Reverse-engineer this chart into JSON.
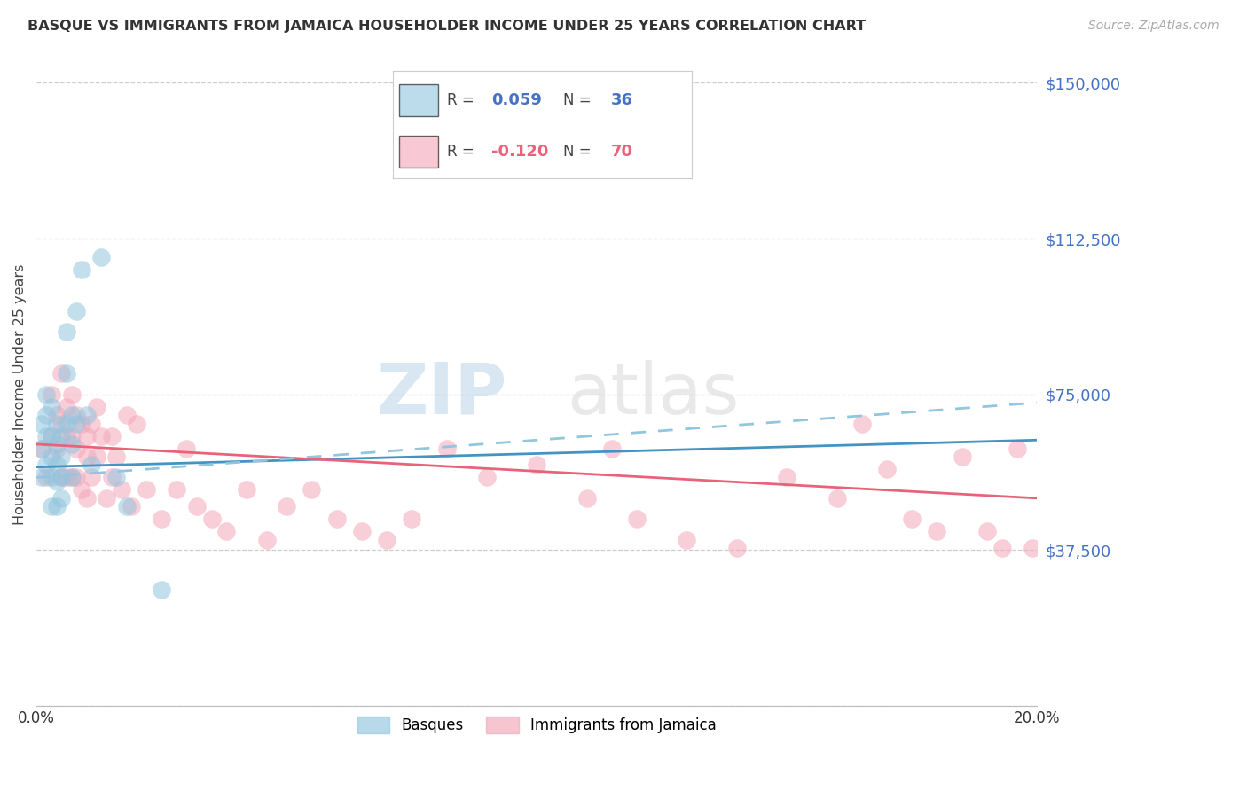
{
  "title": "BASQUE VS IMMIGRANTS FROM JAMAICA HOUSEHOLDER INCOME UNDER 25 YEARS CORRELATION CHART",
  "source": "Source: ZipAtlas.com",
  "ylabel": "Householder Income Under 25 years",
  "xlim": [
    0.0,
    0.2
  ],
  "ylim": [
    0,
    150000
  ],
  "yticks": [
    0,
    37500,
    75000,
    112500,
    150000
  ],
  "ytick_labels": [
    "",
    "$37,500",
    "$75,000",
    "$112,500",
    "$150,000"
  ],
  "color_blue": "#92c5de",
  "color_pink": "#f4a6b8",
  "trendline_blue_solid": "#4393c3",
  "trendline_pink_solid": "#e8637a",
  "trendline_blue_dashed": "#92c5de",
  "basque_x": [
    0.001,
    0.001,
    0.001,
    0.002,
    0.002,
    0.002,
    0.002,
    0.003,
    0.003,
    0.003,
    0.003,
    0.003,
    0.004,
    0.004,
    0.004,
    0.004,
    0.004,
    0.005,
    0.005,
    0.005,
    0.005,
    0.006,
    0.006,
    0.006,
    0.007,
    0.007,
    0.007,
    0.008,
    0.008,
    0.009,
    0.01,
    0.011,
    0.013,
    0.016,
    0.018,
    0.025
  ],
  "basque_y": [
    68000,
    62000,
    55000,
    75000,
    70000,
    65000,
    58000,
    72000,
    65000,
    60000,
    55000,
    48000,
    68000,
    63000,
    58000,
    54000,
    48000,
    65000,
    60000,
    55000,
    50000,
    90000,
    80000,
    68000,
    70000,
    63000,
    55000,
    95000,
    68000,
    105000,
    70000,
    58000,
    108000,
    55000,
    48000,
    28000
  ],
  "jamaica_x": [
    0.001,
    0.002,
    0.003,
    0.003,
    0.004,
    0.004,
    0.005,
    0.005,
    0.005,
    0.006,
    0.006,
    0.006,
    0.007,
    0.007,
    0.007,
    0.008,
    0.008,
    0.008,
    0.009,
    0.009,
    0.01,
    0.01,
    0.01,
    0.011,
    0.011,
    0.012,
    0.012,
    0.013,
    0.014,
    0.015,
    0.015,
    0.016,
    0.017,
    0.018,
    0.019,
    0.02,
    0.022,
    0.025,
    0.028,
    0.03,
    0.032,
    0.035,
    0.038,
    0.042,
    0.046,
    0.05,
    0.055,
    0.06,
    0.065,
    0.07,
    0.075,
    0.082,
    0.09,
    0.1,
    0.11,
    0.115,
    0.12,
    0.13,
    0.14,
    0.15,
    0.16,
    0.165,
    0.17,
    0.175,
    0.18,
    0.185,
    0.19,
    0.193,
    0.196,
    0.199
  ],
  "jamaica_y": [
    62000,
    55000,
    75000,
    65000,
    70000,
    62000,
    80000,
    68000,
    55000,
    72000,
    65000,
    55000,
    75000,
    65000,
    55000,
    70000,
    62000,
    55000,
    68000,
    52000,
    65000,
    60000,
    50000,
    68000,
    55000,
    72000,
    60000,
    65000,
    50000,
    65000,
    55000,
    60000,
    52000,
    70000,
    48000,
    68000,
    52000,
    45000,
    52000,
    62000,
    48000,
    45000,
    42000,
    52000,
    40000,
    48000,
    52000,
    45000,
    42000,
    40000,
    45000,
    62000,
    55000,
    58000,
    50000,
    62000,
    45000,
    40000,
    38000,
    55000,
    50000,
    68000,
    57000,
    45000,
    42000,
    60000,
    42000,
    38000,
    62000,
    38000
  ],
  "basque_trend_x": [
    0.0,
    0.2
  ],
  "basque_trend_y": [
    57500,
    64000
  ],
  "jamaica_trend_x": [
    0.0,
    0.2
  ],
  "jamaica_trend_y": [
    63000,
    50000
  ],
  "dashed_trend_x": [
    0.0,
    0.2
  ],
  "dashed_trend_y": [
    55000,
    73000
  ],
  "watermark_zip": "ZIP",
  "watermark_atlas": "atlas",
  "legend1_color": "#4393c3",
  "legend2_color": "#e8637a",
  "legend1_text_r": "R = ",
  "legend1_val_r": "0.059",
  "legend1_text_n": "  N = ",
  "legend1_val_n": "36",
  "legend2_text_r": "R = ",
  "legend2_val_r": "-0.120",
  "legend2_text_n": "  N = ",
  "legend2_val_n": "70",
  "bottom_legend1": "Basques",
  "bottom_legend2": "Immigrants from Jamaica"
}
